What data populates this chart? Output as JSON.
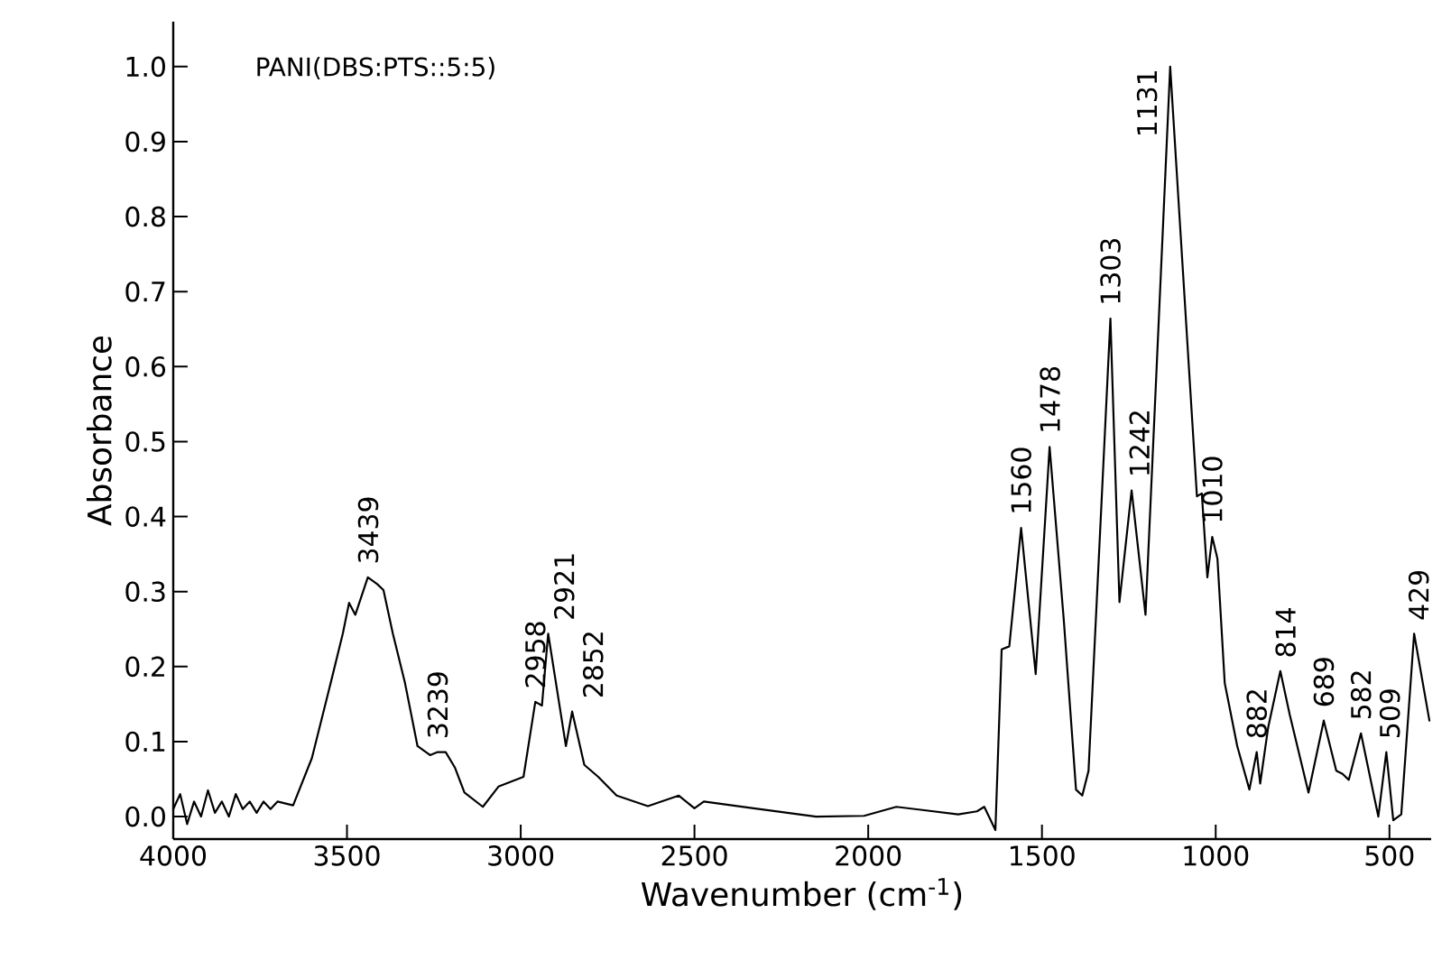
{
  "chart_data": {
    "type": "line",
    "title": "PANI(DBS:PTS::5:5)",
    "xlabel": "Wavenumber (cm$^{-1}$)",
    "ylabel": "Absorbance",
    "xlim": [
      4000,
      380
    ],
    "xticks": [
      4000,
      3500,
      3000,
      2500,
      2000,
      1500,
      1000,
      500
    ],
    "ylim": [
      -0.03,
      1.06
    ],
    "yticks": [
      {
        "value": 0,
        "label": "0.0"
      },
      {
        "value": 0.1,
        "label": "0.1"
      },
      {
        "value": 0.2,
        "label": "0.2"
      },
      {
        "value": 0.3,
        "label": "0.3"
      },
      {
        "value": 0.4,
        "label": "0.4"
      },
      {
        "value": 0.5,
        "label": "0.5"
      },
      {
        "value": 0.6,
        "label": "0.6"
      },
      {
        "value": 0.7,
        "label": "0.7"
      },
      {
        "value": 0.8,
        "label": "0.8"
      },
      {
        "value": 0.9,
        "label": "0.9"
      },
      {
        "value": 1.0,
        "label": "1.0"
      }
    ],
    "series": [
      {
        "color": "#000000",
        "x": [
          4000,
          3980,
          3960,
          3940,
          3920,
          3900,
          3880,
          3860,
          3840,
          3820,
          3800,
          3780,
          3760,
          3740,
          3720,
          3700,
          3655,
          3601,
          3547,
          3512,
          3494,
          3476,
          3440,
          3413,
          3395,
          3368,
          3333,
          3297,
          3261,
          3239,
          3216,
          3189,
          3162,
          3109,
          3064,
          2992,
          2958,
          2939,
          2921,
          2870,
          2852,
          2817,
          2777,
          2724,
          2634,
          2545,
          2500,
          2473,
          2330,
          2150,
          2012,
          1919,
          1741,
          1687,
          1666,
          1634,
          1616,
          1594,
          1560,
          1518,
          1478,
          1437,
          1402,
          1384,
          1366,
          1303,
          1277,
          1242,
          1202,
          1131,
          1054,
          1040,
          1024,
          1010,
          995,
          974,
          938,
          903,
          882,
          872,
          849,
          814,
          787,
          733,
          689,
          653,
          635,
          617,
          582,
          532,
          509,
          489,
          466,
          429,
          385
        ],
        "values": [
          0.01,
          0.03,
          -0.01,
          0.02,
          0.0,
          0.035,
          0.005,
          0.02,
          0.0,
          0.03,
          0.01,
          0.02,
          0.005,
          0.02,
          0.01,
          0.02,
          0.015,
          0.078,
          0.178,
          0.244,
          0.285,
          0.269,
          0.319,
          0.31,
          0.302,
          0.244,
          0.178,
          0.094,
          0.082,
          0.086,
          0.086,
          0.065,
          0.032,
          0.013,
          0.04,
          0.053,
          0.153,
          0.148,
          0.244,
          0.094,
          0.14,
          0.069,
          0.053,
          0.028,
          0.014,
          0.028,
          0.011,
          0.02,
          0.011,
          0.0,
          0.001,
          0.013,
          0.003,
          0.007,
          0.013,
          -0.018,
          0.223,
          0.227,
          0.385,
          0.19,
          0.493,
          0.261,
          0.036,
          0.028,
          0.061,
          0.664,
          0.286,
          0.435,
          0.269,
          1.0,
          0.427,
          0.431,
          0.319,
          0.373,
          0.344,
          0.178,
          0.094,
          0.036,
          0.086,
          0.044,
          0.119,
          0.194,
          0.136,
          0.032,
          0.128,
          0.061,
          0.057,
          0.049,
          0.111,
          0.0,
          0.086,
          -0.005,
          0.003,
          0.244,
          0.128
        ]
      }
    ],
    "annotations": [
      {
        "text": "3439",
        "x": 3439,
        "y": 0.319
      },
      {
        "text": "3239",
        "x": 3239,
        "y": 0.086
      },
      {
        "text": "2958",
        "x": 2958,
        "y": 0.153
      },
      {
        "text": "2921",
        "x": 2921,
        "y": 0.244
      },
      {
        "text": "2852",
        "x": 2852,
        "y": 0.14
      },
      {
        "text": "1560",
        "x": 1560,
        "y": 0.385
      },
      {
        "text": "1478",
        "x": 1478,
        "y": 0.493
      },
      {
        "text": "1303",
        "x": 1303,
        "y": 0.664
      },
      {
        "text": "1242",
        "x": 1242,
        "y": 0.435
      },
      {
        "text": "1131",
        "x": 1131,
        "y": 1.0
      },
      {
        "text": "1010",
        "x": 1010,
        "y": 0.373
      },
      {
        "text": "882",
        "x": 882,
        "y": 0.086
      },
      {
        "text": "814",
        "x": 814,
        "y": 0.194
      },
      {
        "text": "689",
        "x": 689,
        "y": 0.128
      },
      {
        "text": "582",
        "x": 582,
        "y": 0.111
      },
      {
        "text": "509",
        "x": 509,
        "y": 0.086
      },
      {
        "text": "429",
        "x": 429,
        "y": 0.244
      }
    ]
  }
}
